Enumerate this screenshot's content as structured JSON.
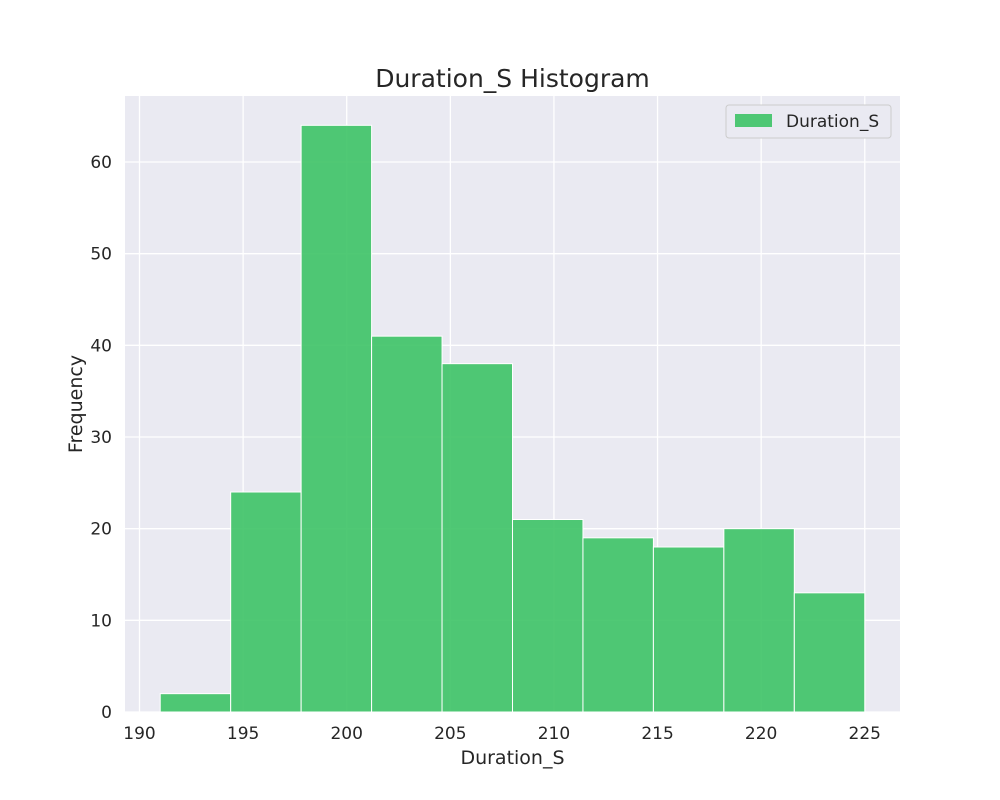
{
  "chart_data": {
    "type": "bar",
    "subtype": "histogram",
    "title": "Duration_S Histogram",
    "xlabel": "Duration_S",
    "ylabel": "Frequency",
    "bin_edges": [
      191.0,
      194.4,
      197.8,
      201.2,
      204.6,
      208.0,
      211.4,
      214.8,
      218.2,
      221.6,
      225.0
    ],
    "values": [
      2,
      24,
      64,
      41,
      38,
      21,
      19,
      18,
      20,
      13
    ],
    "series": [
      {
        "name": "Duration_S",
        "values": [
          2,
          24,
          64,
          41,
          38,
          21,
          19,
          18,
          20,
          13
        ]
      }
    ],
    "xlim": [
      189.3,
      226.7
    ],
    "ylim": [
      0,
      67.2
    ],
    "xticks": [
      190,
      195,
      200,
      205,
      210,
      215,
      220,
      225
    ],
    "yticks": [
      0,
      10,
      20,
      30,
      40,
      50,
      60
    ],
    "grid": true,
    "legend_position": "top-right",
    "colors": {
      "bar": "#3dc366",
      "plot_background": "#eaeaf2",
      "grid": "#ffffff",
      "text": "#262626"
    }
  }
}
